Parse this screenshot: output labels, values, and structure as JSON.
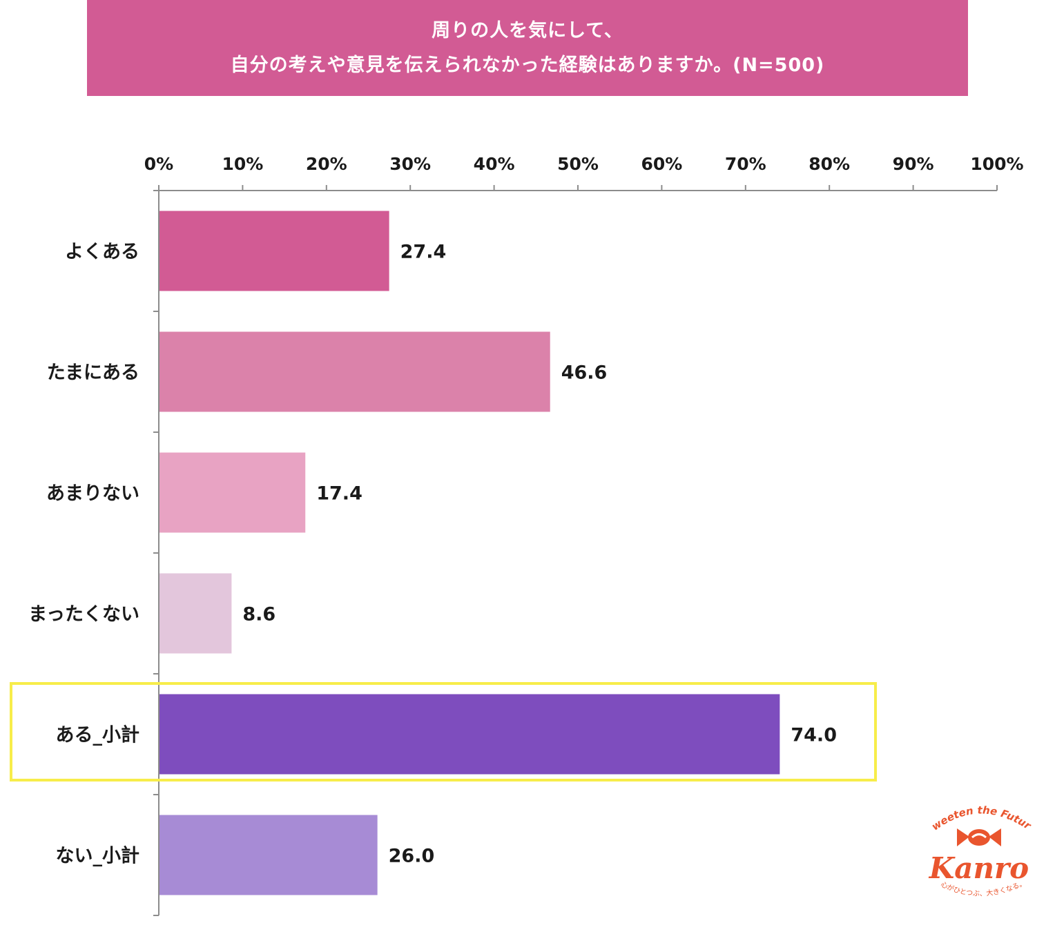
{
  "title": {
    "line1": "周りの人を気にして、",
    "line2": "自分の考えや意見を伝えられなかった経験はありますか。(N=500)"
  },
  "chart_data": {
    "type": "bar",
    "orientation": "horizontal",
    "categories": [
      "よくある",
      "たまにある",
      "あまりない",
      "まったくない",
      "ある_小計",
      "ない_小計"
    ],
    "values": [
      27.4,
      46.6,
      17.4,
      8.6,
      74.0,
      26.0
    ],
    "value_labels": [
      "27.4",
      "46.6",
      "17.4",
      "8.6",
      "74.0",
      "26.0"
    ],
    "colors": [
      "#d25b94",
      "#db82aa",
      "#e8a3c3",
      "#e3c6dc",
      "#7e4dbe",
      "#a78bd5"
    ],
    "xlim": [
      0,
      100
    ],
    "xticks": [
      "0%",
      "10%",
      "20%",
      "30%",
      "40%",
      "50%",
      "60%",
      "70%",
      "80%",
      "90%",
      "100%"
    ],
    "axis_position": "top",
    "grid": false,
    "highlight_category": "ある_小計",
    "highlight_color": "#f7ed4a"
  },
  "logo": {
    "tagline": "Sweeten the Future",
    "brand": "Kanro",
    "slogan": "心がひとつぶ、大きくなる。",
    "color": "#e9552e"
  }
}
